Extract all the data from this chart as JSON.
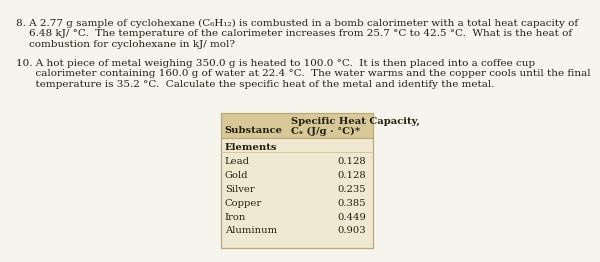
{
  "q8_line1": "8. A 2.77 g sample of cyclohexane (C₆H₁₂) is combusted in a bomb calorimeter with a total heat capacity of",
  "q8_line2": "    6.48 kJ/ °C.  The temperature of the calorimeter increases from 25.7 °C to 42.5 °C.  What is the heat of",
  "q8_line3": "    combustion for cyclohexane in kJ/ mol?",
  "q10_line1": "10. A hot piece of metal weighing 350.0 g is heated to 100.0 °C.  It is then placed into a coffee cup",
  "q10_line2": "      calorimeter containing 160.0 g of water at 22.4 °C.  The water warms and the copper cools until the final",
  "q10_line3": "      temperature is 35.2 °C.  Calculate the specific heat of the metal and identify the metal.",
  "table_header_line1": "Specific Heat Capacity,",
  "table_header_line2": "Cₛ (J/g · °C)*",
  "table_substance_col": "Substance",
  "table_elements_label": "Elements",
  "table_data": [
    [
      "Lead",
      "0.128"
    ],
    [
      "Gold",
      "0.128"
    ],
    [
      "Silver",
      "0.235"
    ],
    [
      "Copper",
      "0.385"
    ],
    [
      "Iron",
      "0.449"
    ],
    [
      "Aluminum",
      "0.903"
    ]
  ],
  "bg_color": "#f5f5ee",
  "table_bg": "#f0e8d0",
  "table_header_bg": "#d8c898",
  "text_color": "#222211",
  "font_size": 7.5,
  "table_font_size": 7.2
}
